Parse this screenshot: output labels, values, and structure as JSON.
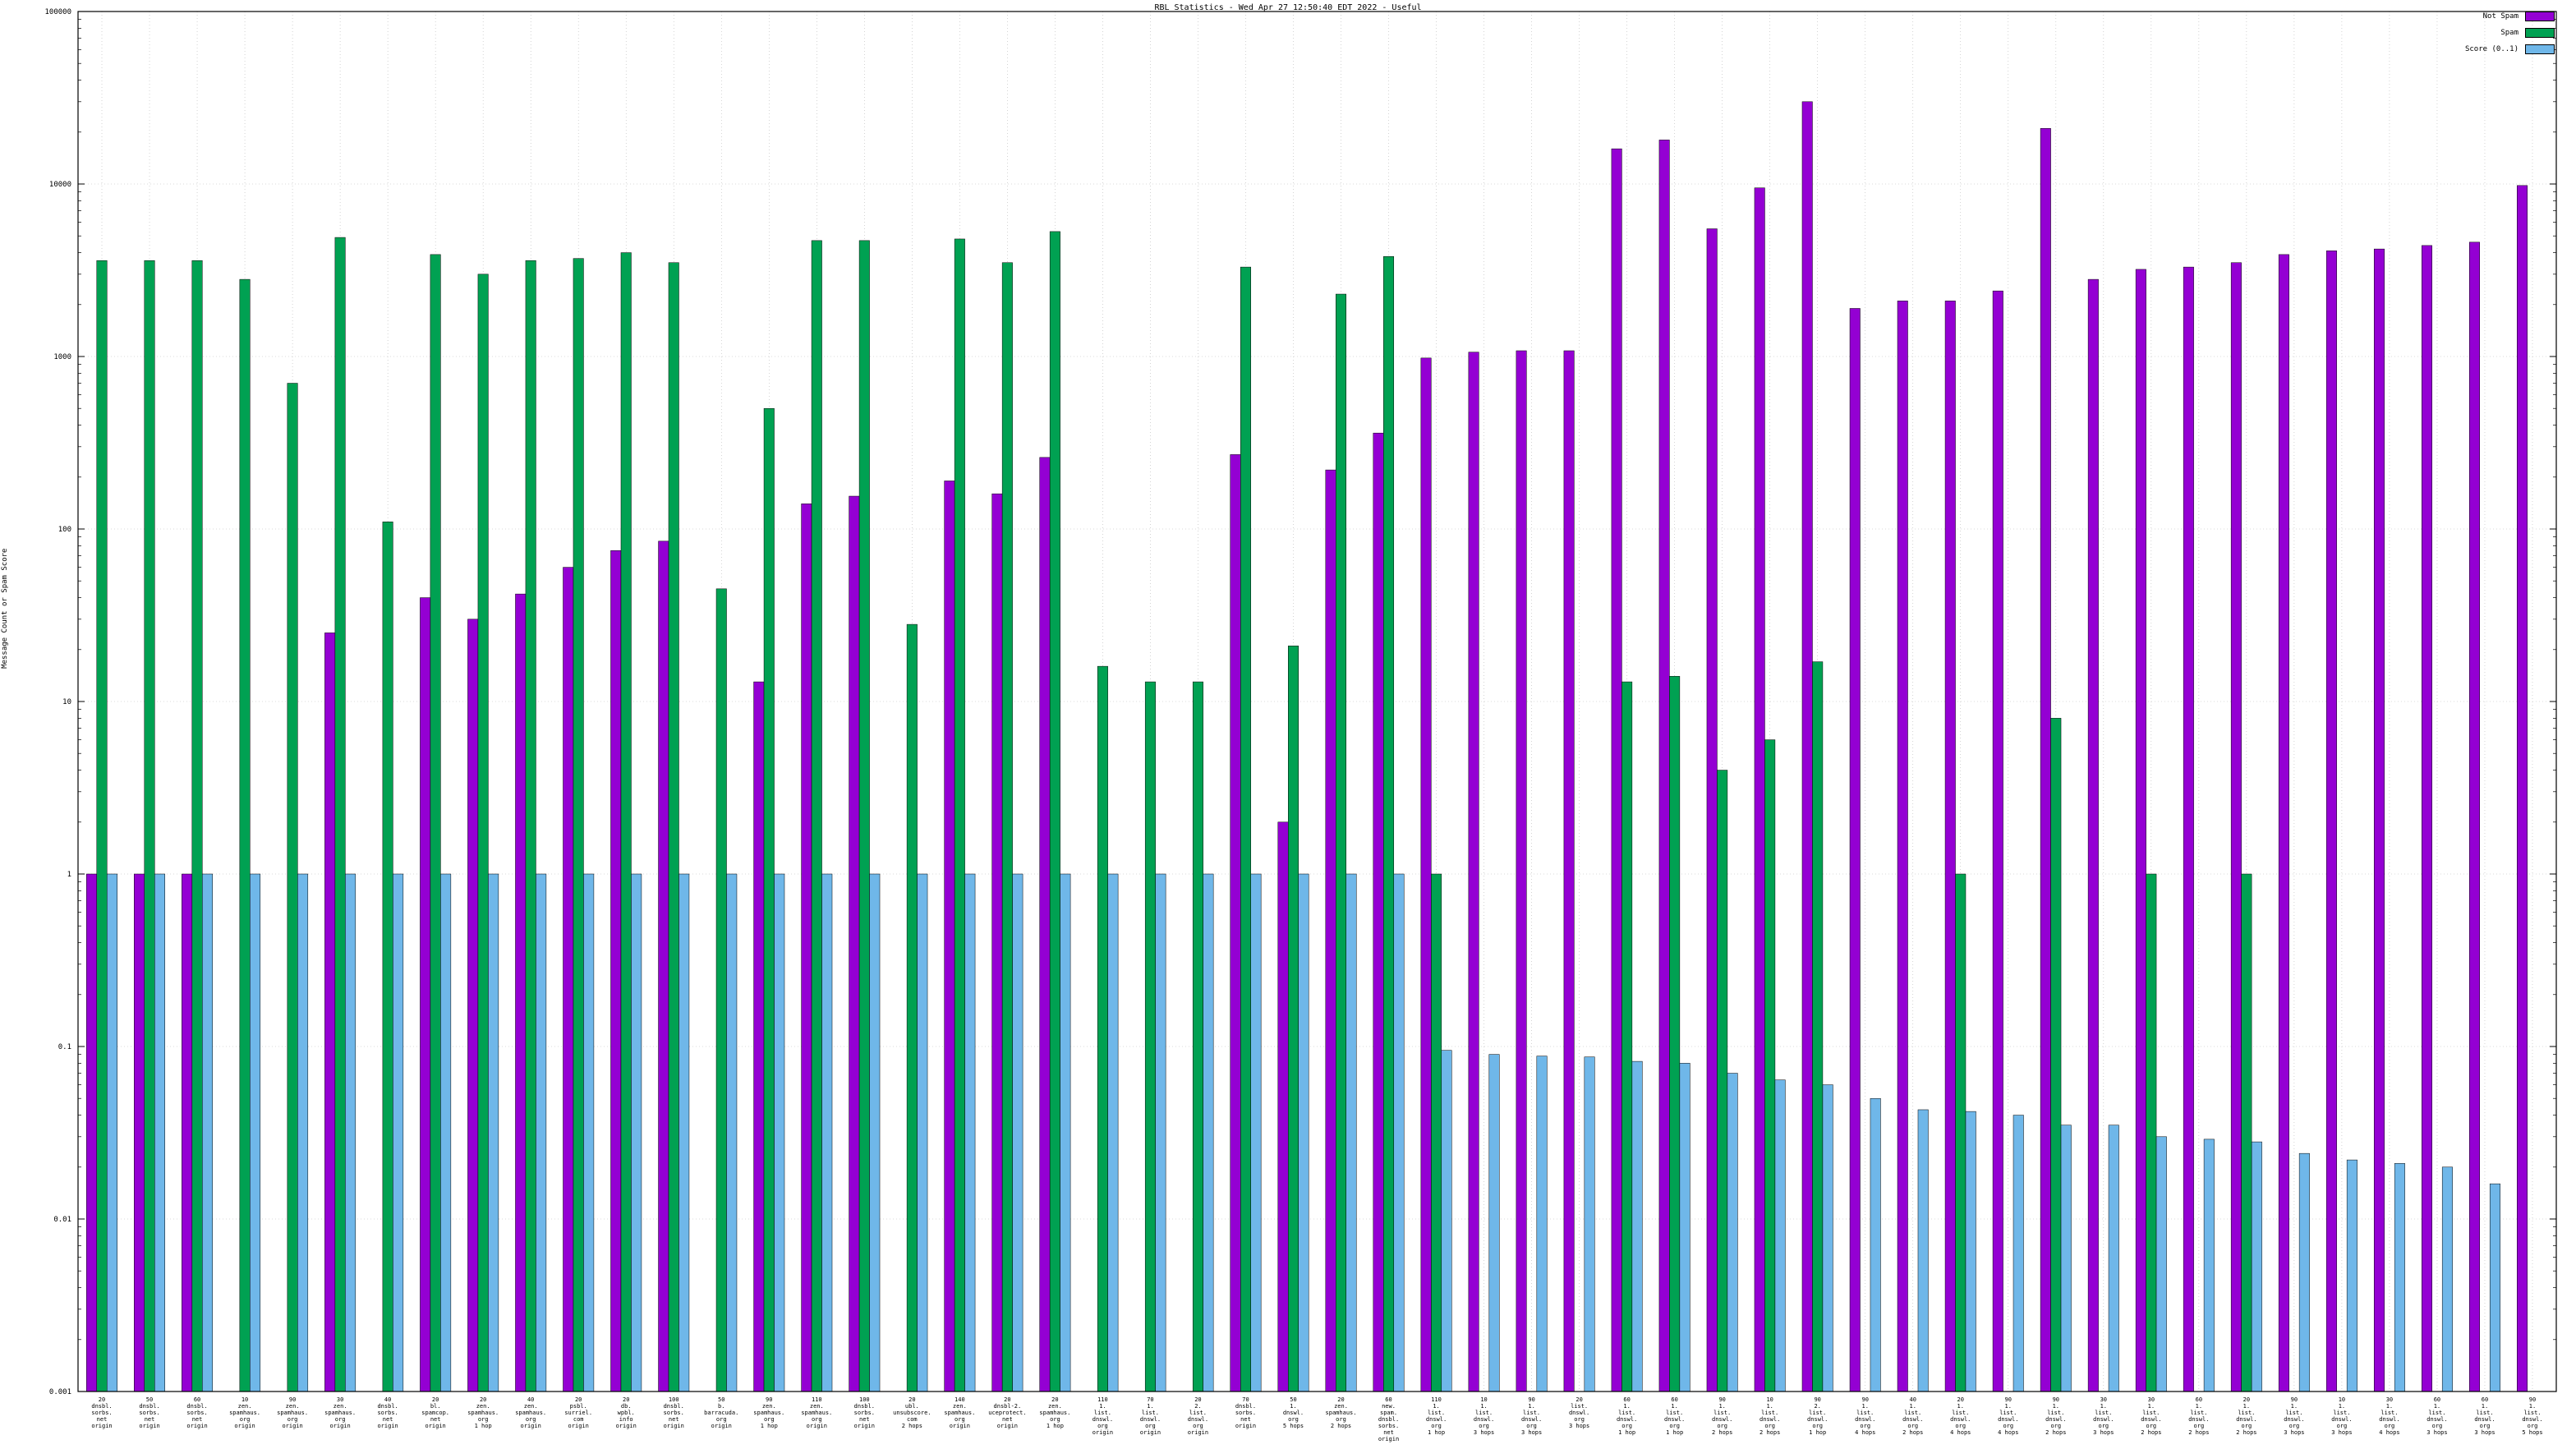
{
  "title": "RBL Statistics - Wed Apr 27 12:50:40 EDT 2022 - Useful",
  "y_axis_label": "Message Count or Spam Score",
  "legend": {
    "items": [
      {
        "label": "Not Spam",
        "color": "#9400d3"
      },
      {
        "label": "Spam",
        "color": "#00a152"
      },
      {
        "label": "Score (0..1)",
        "color": "#6fb7e9"
      }
    ]
  },
  "chart_data": {
    "type": "bar",
    "subtype": "clustered-log-histogram",
    "title": "RBL Statistics - Wed Apr 27 12:50:40 EDT 2022 - Useful",
    "xlabel": "",
    "ylabel": "Message Count or Spam Score",
    "y_scale": "log10",
    "ylim": [
      0.001,
      100000
    ],
    "y_ticks": [
      0.001,
      0.01,
      0.1,
      1,
      10,
      100,
      1000,
      10000,
      100000
    ],
    "grid": true,
    "legend_position": "top-right",
    "series_names": [
      "Not Spam",
      "Spam",
      "Score (0..1)"
    ],
    "colors": {
      "not_spam": "#9400d3",
      "spam": "#00a152",
      "score": "#6fb7e9",
      "grid": "#b8b8b8",
      "axis": "#000000"
    },
    "groups": [
      {
        "label": [
          "20",
          "dnsbl.",
          "sorbs.",
          "net",
          "origin"
        ],
        "not_spam": 1,
        "spam": 3600,
        "score": 1
      },
      {
        "label": [
          "50",
          "dnsbl.",
          "sorbs.",
          "net",
          "origin"
        ],
        "not_spam": 1,
        "spam": 3600,
        "score": 1
      },
      {
        "label": [
          "60",
          "dnsbl.",
          "sorbs.",
          "net",
          "origin"
        ],
        "not_spam": 1,
        "spam": 3600,
        "score": 1
      },
      {
        "label": [
          "10",
          "zen.",
          "spamhaus.",
          "org",
          "origin"
        ],
        "not_spam": 0,
        "spam": 2800,
        "score": 1
      },
      {
        "label": [
          "90",
          "zen.",
          "spamhaus.",
          "org",
          "origin"
        ],
        "not_spam": 0,
        "spam": 700,
        "score": 1
      },
      {
        "label": [
          "30",
          "zen.",
          "spamhaus.",
          "org",
          "origin"
        ],
        "not_spam": 25,
        "spam": 4900,
        "score": 1
      },
      {
        "label": [
          "40",
          "dnsbl.",
          "sorbs.",
          "net",
          "origin"
        ],
        "not_spam": 0,
        "spam": 110,
        "score": 1
      },
      {
        "label": [
          "20",
          "bl.",
          "spamcop.",
          "net",
          "origin"
        ],
        "not_spam": 40,
        "spam": 3900,
        "score": 1
      },
      {
        "label": [
          "20",
          "zen.",
          "spamhaus.",
          "org",
          "1 hop"
        ],
        "not_spam": 30,
        "spam": 3000,
        "score": 1
      },
      {
        "label": [
          "40",
          "zen.",
          "spamhaus.",
          "org",
          "origin"
        ],
        "not_spam": 42,
        "spam": 3600,
        "score": 1
      },
      {
        "label": [
          "20",
          "psbl.",
          "surriel.",
          "com",
          "origin"
        ],
        "not_spam": 60,
        "spam": 3700,
        "score": 1
      },
      {
        "label": [
          "20",
          "db.",
          "wpbl.",
          "info",
          "origin"
        ],
        "not_spam": 75,
        "spam": 4000,
        "score": 1
      },
      {
        "label": [
          "100",
          "dnsbl.",
          "sorbs.",
          "net",
          "origin"
        ],
        "not_spam": 85,
        "spam": 3500,
        "score": 1
      },
      {
        "label": [
          "50",
          "b.",
          "barracuda.",
          "org",
          "origin"
        ],
        "not_spam": 0,
        "spam": 45,
        "score": 1
      },
      {
        "label": [
          "90",
          "zen.",
          "spamhaus.",
          "org",
          "1 hop"
        ],
        "not_spam": 13,
        "spam": 500,
        "score": 1
      },
      {
        "label": [
          "110",
          "zen.",
          "spamhaus.",
          "org",
          "origin"
        ],
        "not_spam": 140,
        "spam": 4700,
        "score": 1
      },
      {
        "label": [
          "100",
          "dnsbl.",
          "sorbs.",
          "net",
          "origin"
        ],
        "not_spam": 155,
        "spam": 4700,
        "score": 1
      },
      {
        "label": [
          "20",
          "ubl.",
          "unsubscore.",
          "com",
          "2 hops"
        ],
        "not_spam": 0,
        "spam": 28,
        "score": 1
      },
      {
        "label": [
          "140",
          "zen.",
          "spamhaus.",
          "org",
          "origin"
        ],
        "not_spam": 190,
        "spam": 4800,
        "score": 1
      },
      {
        "label": [
          "20",
          "dnsbl-2.",
          "uceprotect.",
          "net",
          "origin"
        ],
        "not_spam": 160,
        "spam": 3500,
        "score": 1
      },
      {
        "label": [
          "20",
          "zen.",
          "spamhaus.",
          "org",
          "1 hop"
        ],
        "not_spam": 260,
        "spam": 5300,
        "score": 1
      },
      {
        "label": [
          "110",
          "1.",
          "list.",
          "dnswl.",
          "org",
          "origin"
        ],
        "not_spam": 0,
        "spam": 16,
        "score": 1
      },
      {
        "label": [
          "70",
          "1.",
          "list.",
          "dnswl.",
          "org",
          "origin"
        ],
        "not_spam": 0,
        "spam": 13,
        "score": 1
      },
      {
        "label": [
          "20",
          "2.",
          "list.",
          "dnswl.",
          "org",
          "origin"
        ],
        "not_spam": 0,
        "spam": 13,
        "score": 1
      },
      {
        "label": [
          "70",
          "dnsbl.",
          "sorbs.",
          "net",
          "origin"
        ],
        "not_spam": 270,
        "spam": 3300,
        "score": 1
      },
      {
        "label": [
          "50",
          "1.",
          "dnswl.",
          "org",
          "5 hops"
        ],
        "not_spam": 2,
        "spam": 21,
        "score": 1
      },
      {
        "label": [
          "20",
          "zen.",
          "spamhaus.",
          "org",
          "2 hops"
        ],
        "not_spam": 220,
        "spam": 2300,
        "score": 1
      },
      {
        "label": [
          "60",
          "new.",
          "spam.",
          "dnsbl.",
          "sorbs.",
          "net",
          "origin"
        ],
        "not_spam": 360,
        "spam": 3800,
        "score": 1
      },
      {
        "label": [
          "110",
          "1.",
          "list.",
          "dnswl.",
          "org",
          "1 hop"
        ],
        "not_spam": 980,
        "spam": 1,
        "score": 0.095
      },
      {
        "label": [
          "10",
          "1.",
          "list.",
          "dnswl.",
          "org",
          "3 hops"
        ],
        "not_spam": 1060,
        "spam": 0,
        "score": 0.09
      },
      {
        "label": [
          "90",
          "1.",
          "list.",
          "dnswl.",
          "org",
          "3 hops"
        ],
        "not_spam": 1080,
        "spam": 0,
        "score": 0.088
      },
      {
        "label": [
          "20",
          "list.",
          "dnswl.",
          "org",
          "3 hops"
        ],
        "not_spam": 1080,
        "spam": 0,
        "score": 0.087
      },
      {
        "label": [
          "60",
          "1.",
          "list.",
          "dnswl.",
          "org",
          "1 hop"
        ],
        "not_spam": 16000,
        "spam": 13,
        "score": 0.082
      },
      {
        "label": [
          "60",
          "1.",
          "list.",
          "dnswl.",
          "org",
          "1 hop"
        ],
        "not_spam": 18000,
        "spam": 14,
        "score": 0.08
      },
      {
        "label": [
          "90",
          "1.",
          "list.",
          "dnswl.",
          "org",
          "2 hops"
        ],
        "not_spam": 5500,
        "spam": 4,
        "score": 0.07
      },
      {
        "label": [
          "10",
          "1.",
          "list.",
          "dnswl.",
          "org",
          "2 hops"
        ],
        "not_spam": 9500,
        "spam": 6,
        "score": 0.064
      },
      {
        "label": [
          "90",
          "2.",
          "list.",
          "dnswl.",
          "org",
          "1 hop"
        ],
        "not_spam": 30000,
        "spam": 17,
        "score": 0.06
      },
      {
        "label": [
          "90",
          "1.",
          "list.",
          "dnswl.",
          "org",
          "4 hops"
        ],
        "not_spam": 1900,
        "spam": 0,
        "score": 0.05
      },
      {
        "label": [
          "40",
          "1.",
          "list.",
          "dnswl.",
          "org",
          "2 hops"
        ],
        "not_spam": 2100,
        "spam": 0,
        "score": 0.043
      },
      {
        "label": [
          "20",
          "1.",
          "list.",
          "dnswl.",
          "org",
          "4 hops"
        ],
        "not_spam": 2100,
        "spam": 1,
        "score": 0.042
      },
      {
        "label": [
          "90",
          "1.",
          "list.",
          "dnswl.",
          "org",
          "4 hops"
        ],
        "not_spam": 2400,
        "spam": 0,
        "score": 0.04
      },
      {
        "label": [
          "90",
          "1.",
          "list.",
          "dnswl.",
          "org",
          "2 hops"
        ],
        "not_spam": 21000,
        "spam": 8,
        "score": 0.035
      },
      {
        "label": [
          "30",
          "1.",
          "list.",
          "dnswl.",
          "org",
          "3 hops"
        ],
        "not_spam": 2800,
        "spam": 0,
        "score": 0.035
      },
      {
        "label": [
          "30",
          "1.",
          "list.",
          "dnswl.",
          "org",
          "2 hops"
        ],
        "not_spam": 3200,
        "spam": 1,
        "score": 0.03
      },
      {
        "label": [
          "60",
          "1.",
          "list.",
          "dnswl.",
          "org",
          "2 hops"
        ],
        "not_spam": 3300,
        "spam": 0,
        "score": 0.029
      },
      {
        "label": [
          "20",
          "1.",
          "list.",
          "dnswl.",
          "org",
          "2 hops"
        ],
        "not_spam": 3500,
        "spam": 1,
        "score": 0.028
      },
      {
        "label": [
          "90",
          "1.",
          "list.",
          "dnswl.",
          "org",
          "3 hops"
        ],
        "not_spam": 3900,
        "spam": 0,
        "score": 0.024
      },
      {
        "label": [
          "10",
          "1.",
          "list.",
          "dnswl.",
          "org",
          "3 hops"
        ],
        "not_spam": 4100,
        "spam": 0,
        "score": 0.022
      },
      {
        "label": [
          "30",
          "1.",
          "list.",
          "dnswl.",
          "org",
          "4 hops"
        ],
        "not_spam": 4200,
        "spam": 0,
        "score": 0.021
      },
      {
        "label": [
          "60",
          "1.",
          "list.",
          "dnswl.",
          "org",
          "3 hops"
        ],
        "not_spam": 4400,
        "spam": 0,
        "score": 0.02
      },
      {
        "label": [
          "60",
          "1.",
          "list.",
          "dnswl.",
          "org",
          "3 hops"
        ],
        "not_spam": 4600,
        "spam": 0,
        "score": 0.016
      },
      {
        "label": [
          "90",
          "1.",
          "list.",
          "dnswl.",
          "org",
          "5 hops"
        ],
        "not_spam": 9800,
        "spam": 0,
        "score": 0
      }
    ]
  }
}
